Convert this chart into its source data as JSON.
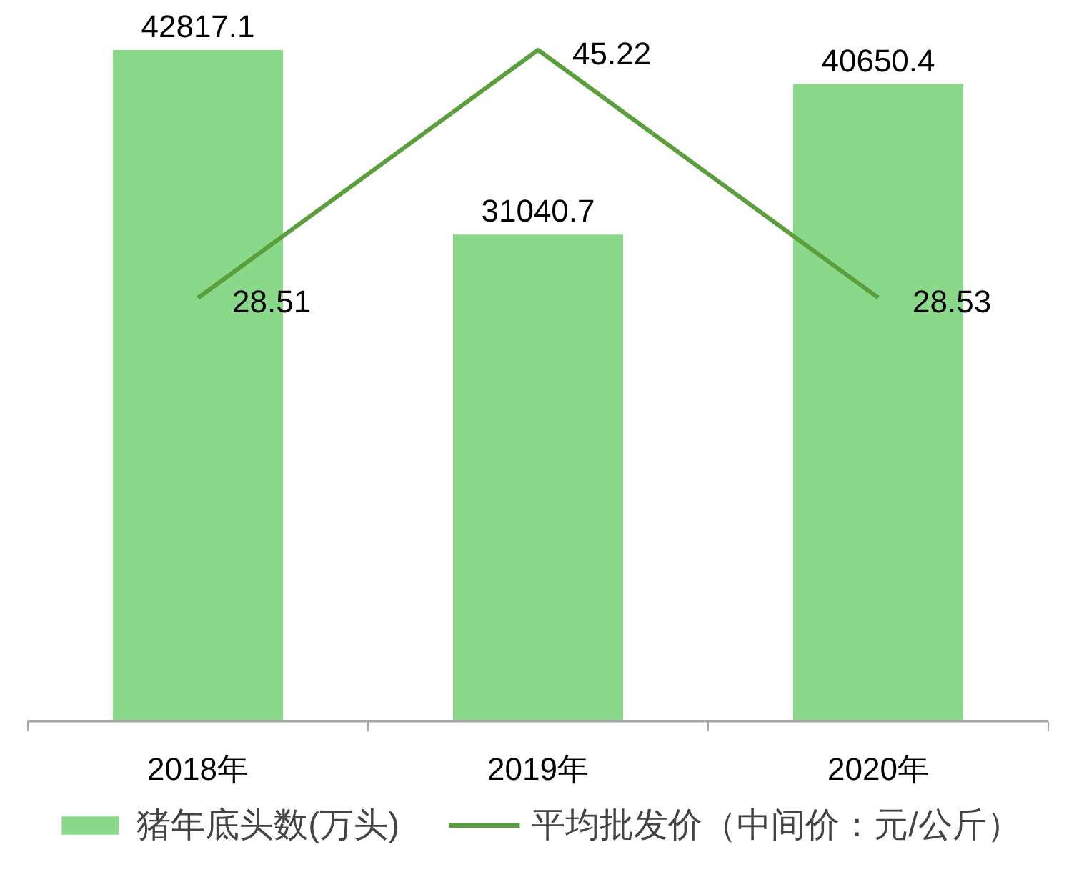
{
  "chart_data": {
    "type": "bar",
    "categories": [
      "2018年",
      "2019年",
      "2020年"
    ],
    "series": [
      {
        "name": "猪年底头数(万头)",
        "color": "#8ad88a",
        "values": [
          42817.1,
          31040.7,
          40650.4
        ]
      },
      {
        "name": "平均批发价（中间价：元/公斤）",
        "type": "line",
        "axis": "y2",
        "color": "#5b9e3c",
        "values": [
          28.51,
          45.22,
          28.53
        ]
      }
    ],
    "tick_labels": "x",
    "data_labels": true,
    "legend": "bottom",
    "grid": false,
    "marker": "none",
    "line_style": "solid"
  }
}
